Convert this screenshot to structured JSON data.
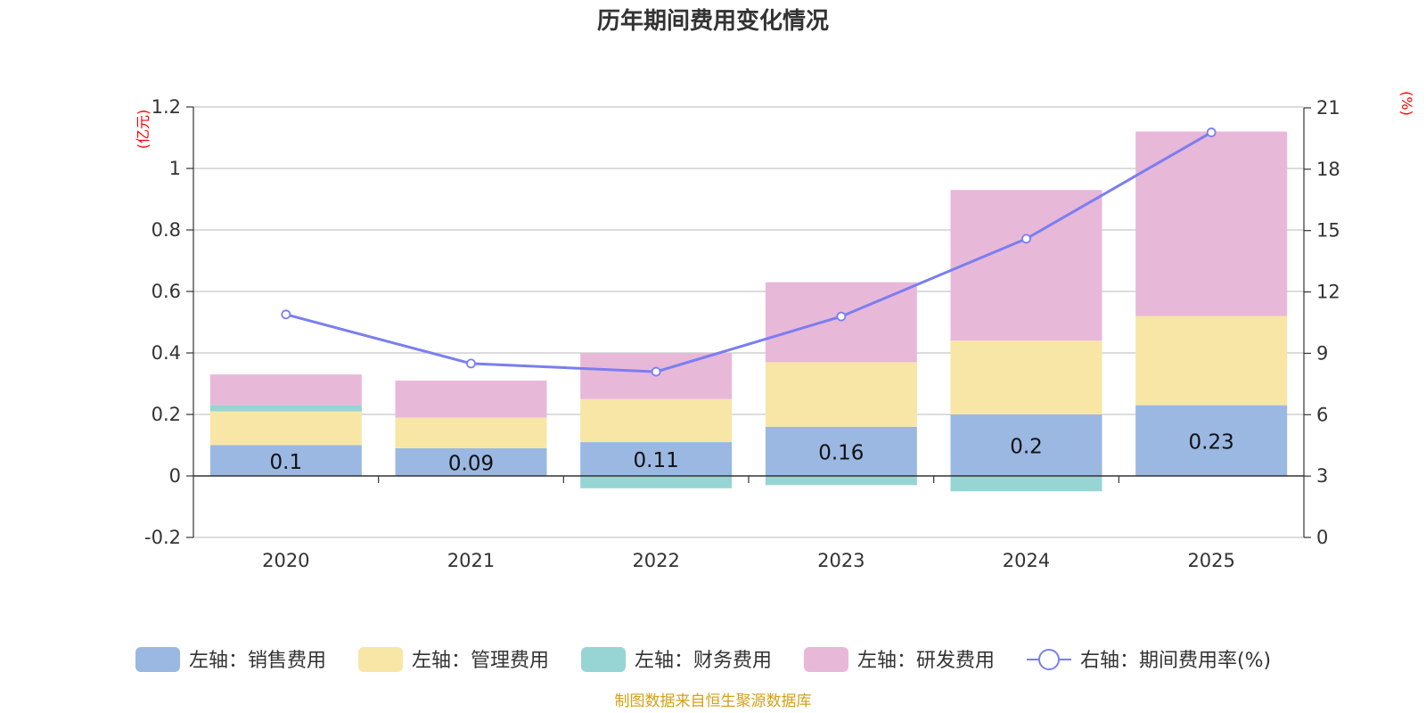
{
  "title": "历年期间费用变化情况",
  "source": "制图数据来自恒生聚源数据库",
  "colors": {
    "sales": "#9ab8e1",
    "admin": "#f8e6a6",
    "finance": "#96d5d4",
    "rnd": "#e8b8d9",
    "rate_line": "#7a7ef0",
    "grid": "#c8c8c8",
    "axis": "#333333",
    "unit": "#ff0000",
    "source": "#d4a017"
  },
  "chart_data": {
    "type": "bar",
    "stacked": true,
    "title": "历年期间费用变化情况",
    "categories": [
      "2020",
      "2021",
      "2022",
      "2023",
      "2024",
      "2025"
    ],
    "left_axis": {
      "unit_label": "(亿元)",
      "range": [
        -0.2,
        1.2
      ],
      "ticks": [
        "1.2",
        "1",
        "0.8",
        "0.6",
        "0.4",
        "0.2",
        "0",
        "-0.2"
      ],
      "tick_values": [
        1.2,
        1,
        0.8,
        0.6,
        0.4,
        0.2,
        0,
        -0.2
      ]
    },
    "right_axis": {
      "unit_label": "(%)",
      "range": [
        0,
        21
      ],
      "ticks": [
        "21",
        "18",
        "15",
        "12",
        "9",
        "6",
        "3",
        "0"
      ],
      "tick_values": [
        21,
        18,
        15,
        12,
        9,
        6,
        3,
        0
      ]
    },
    "series": [
      {
        "key": "sales",
        "name": "左轴：销售费用",
        "axis": "left",
        "kind": "bar",
        "values": [
          0.1,
          0.09,
          0.11,
          0.16,
          0.2,
          0.23
        ],
        "labels": [
          "0.1",
          "0.09",
          "0.11",
          "0.16",
          "0.2",
          "0.23"
        ]
      },
      {
        "key": "admin",
        "name": "左轴：管理费用",
        "axis": "left",
        "kind": "bar",
        "values": [
          0.11,
          0.1,
          0.14,
          0.21,
          0.24,
          0.29
        ]
      },
      {
        "key": "finance",
        "name": "左轴：财务费用",
        "axis": "left",
        "kind": "bar",
        "values": [
          0.02,
          0.0,
          -0.04,
          -0.03,
          -0.05,
          0.0
        ]
      },
      {
        "key": "rnd",
        "name": "左轴：研发费用",
        "axis": "left",
        "kind": "bar",
        "values": [
          0.1,
          0.12,
          0.15,
          0.26,
          0.49,
          0.6
        ]
      },
      {
        "key": "rate_line",
        "name": "右轴：期间费用率(%)",
        "axis": "right",
        "kind": "line",
        "values": [
          10.9,
          8.5,
          8.1,
          10.8,
          14.6,
          19.8
        ]
      }
    ]
  }
}
